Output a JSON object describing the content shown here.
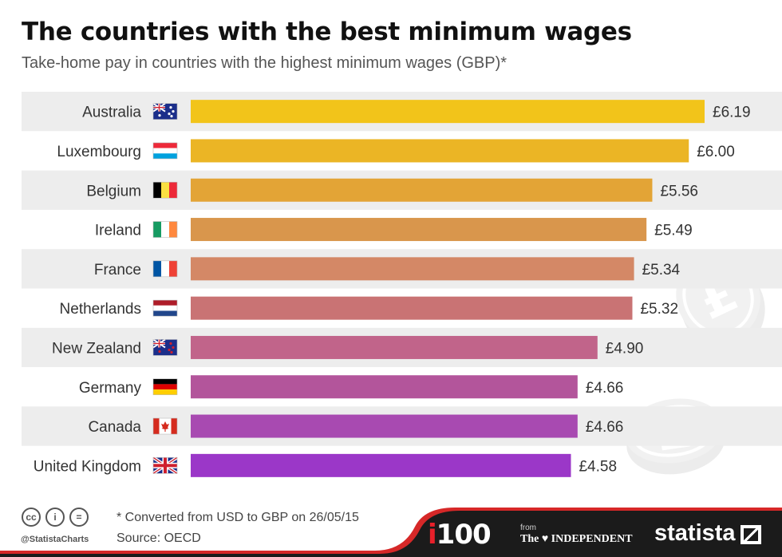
{
  "header": {
    "title": "The countries with the best minimum wages",
    "subtitle": "Take-home pay in countries with the highest minimum wages (GBP)*"
  },
  "chart_data": {
    "type": "bar",
    "orientation": "horizontal",
    "categories": [
      "Australia",
      "Luxembourg",
      "Belgium",
      "Ireland",
      "France",
      "Netherlands",
      "New Zealand",
      "Germany",
      "Canada",
      "United Kingdom"
    ],
    "values": [
      6.19,
      6.0,
      5.56,
      5.49,
      5.34,
      5.32,
      4.9,
      4.66,
      4.66,
      4.58
    ],
    "value_labels": [
      "£6.19",
      "£6.00",
      "£5.56",
      "£5.49",
      "£5.34",
      "£5.32",
      "£4.90",
      "£4.66",
      "£4.66",
      "£4.58"
    ],
    "flags": [
      "australia-flag-icon",
      "luxembourg-flag-icon",
      "belgium-flag-icon",
      "ireland-flag-icon",
      "france-flag-icon",
      "netherlands-flag-icon",
      "new-zealand-flag-icon",
      "germany-flag-icon",
      "canada-flag-icon",
      "united-kingdom-flag-icon"
    ],
    "bar_colors": [
      "#f2c41a",
      "#ebb525",
      "#e3a436",
      "#d9964c",
      "#d48866",
      "#c97374",
      "#c1648a",
      "#b3559b",
      "#a84ab1",
      "#9b37c8"
    ],
    "title": "The countries with the best minimum wages",
    "subtitle": "Take-home pay in countries with the highest minimum wages (GBP)*",
    "xlim": [
      0,
      6.4
    ],
    "grid": false,
    "legend": "none"
  },
  "footer": {
    "note": "* Converted from USD to GBP on 26/05/15",
    "source": "Source: OECD",
    "handle": "@StatistaCharts",
    "cc_icons": [
      "cc-icon",
      "by-icon",
      "nd-icon"
    ],
    "cc_labels": [
      "cc",
      "i",
      "="
    ],
    "brand_i100_i": "i",
    "brand_i100_rest": "100",
    "brand_from": "from",
    "brand_independent": "The ♥ INDEPENDENT",
    "brand_statista": "statista"
  }
}
